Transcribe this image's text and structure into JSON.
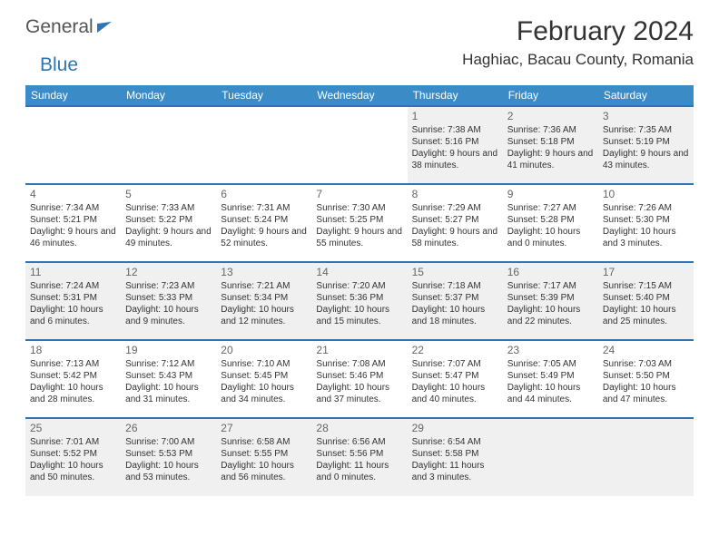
{
  "brand": {
    "word1": "General",
    "word2": "Blue"
  },
  "title": {
    "month_year": "February 2024",
    "location": "Haghiac, Bacau County, Romania"
  },
  "header_bg": "#3b8bc7",
  "row_border": "#2e75b6",
  "alt_row_bg": "#f0f0f0",
  "days_of_week": [
    "Sunday",
    "Monday",
    "Tuesday",
    "Wednesday",
    "Thursday",
    "Friday",
    "Saturday"
  ],
  "weeks": [
    [
      null,
      null,
      null,
      null,
      {
        "n": "1",
        "sr": "Sunrise: 7:38 AM",
        "ss": "Sunset: 5:16 PM",
        "dl": "Daylight: 9 hours and 38 minutes."
      },
      {
        "n": "2",
        "sr": "Sunrise: 7:36 AM",
        "ss": "Sunset: 5:18 PM",
        "dl": "Daylight: 9 hours and 41 minutes."
      },
      {
        "n": "3",
        "sr": "Sunrise: 7:35 AM",
        "ss": "Sunset: 5:19 PM",
        "dl": "Daylight: 9 hours and 43 minutes."
      }
    ],
    [
      {
        "n": "4",
        "sr": "Sunrise: 7:34 AM",
        "ss": "Sunset: 5:21 PM",
        "dl": "Daylight: 9 hours and 46 minutes."
      },
      {
        "n": "5",
        "sr": "Sunrise: 7:33 AM",
        "ss": "Sunset: 5:22 PM",
        "dl": "Daylight: 9 hours and 49 minutes."
      },
      {
        "n": "6",
        "sr": "Sunrise: 7:31 AM",
        "ss": "Sunset: 5:24 PM",
        "dl": "Daylight: 9 hours and 52 minutes."
      },
      {
        "n": "7",
        "sr": "Sunrise: 7:30 AM",
        "ss": "Sunset: 5:25 PM",
        "dl": "Daylight: 9 hours and 55 minutes."
      },
      {
        "n": "8",
        "sr": "Sunrise: 7:29 AM",
        "ss": "Sunset: 5:27 PM",
        "dl": "Daylight: 9 hours and 58 minutes."
      },
      {
        "n": "9",
        "sr": "Sunrise: 7:27 AM",
        "ss": "Sunset: 5:28 PM",
        "dl": "Daylight: 10 hours and 0 minutes."
      },
      {
        "n": "10",
        "sr": "Sunrise: 7:26 AM",
        "ss": "Sunset: 5:30 PM",
        "dl": "Daylight: 10 hours and 3 minutes."
      }
    ],
    [
      {
        "n": "11",
        "sr": "Sunrise: 7:24 AM",
        "ss": "Sunset: 5:31 PM",
        "dl": "Daylight: 10 hours and 6 minutes."
      },
      {
        "n": "12",
        "sr": "Sunrise: 7:23 AM",
        "ss": "Sunset: 5:33 PM",
        "dl": "Daylight: 10 hours and 9 minutes."
      },
      {
        "n": "13",
        "sr": "Sunrise: 7:21 AM",
        "ss": "Sunset: 5:34 PM",
        "dl": "Daylight: 10 hours and 12 minutes."
      },
      {
        "n": "14",
        "sr": "Sunrise: 7:20 AM",
        "ss": "Sunset: 5:36 PM",
        "dl": "Daylight: 10 hours and 15 minutes."
      },
      {
        "n": "15",
        "sr": "Sunrise: 7:18 AM",
        "ss": "Sunset: 5:37 PM",
        "dl": "Daylight: 10 hours and 18 minutes."
      },
      {
        "n": "16",
        "sr": "Sunrise: 7:17 AM",
        "ss": "Sunset: 5:39 PM",
        "dl": "Daylight: 10 hours and 22 minutes."
      },
      {
        "n": "17",
        "sr": "Sunrise: 7:15 AM",
        "ss": "Sunset: 5:40 PM",
        "dl": "Daylight: 10 hours and 25 minutes."
      }
    ],
    [
      {
        "n": "18",
        "sr": "Sunrise: 7:13 AM",
        "ss": "Sunset: 5:42 PM",
        "dl": "Daylight: 10 hours and 28 minutes."
      },
      {
        "n": "19",
        "sr": "Sunrise: 7:12 AM",
        "ss": "Sunset: 5:43 PM",
        "dl": "Daylight: 10 hours and 31 minutes."
      },
      {
        "n": "20",
        "sr": "Sunrise: 7:10 AM",
        "ss": "Sunset: 5:45 PM",
        "dl": "Daylight: 10 hours and 34 minutes."
      },
      {
        "n": "21",
        "sr": "Sunrise: 7:08 AM",
        "ss": "Sunset: 5:46 PM",
        "dl": "Daylight: 10 hours and 37 minutes."
      },
      {
        "n": "22",
        "sr": "Sunrise: 7:07 AM",
        "ss": "Sunset: 5:47 PM",
        "dl": "Daylight: 10 hours and 40 minutes."
      },
      {
        "n": "23",
        "sr": "Sunrise: 7:05 AM",
        "ss": "Sunset: 5:49 PM",
        "dl": "Daylight: 10 hours and 44 minutes."
      },
      {
        "n": "24",
        "sr": "Sunrise: 7:03 AM",
        "ss": "Sunset: 5:50 PM",
        "dl": "Daylight: 10 hours and 47 minutes."
      }
    ],
    [
      {
        "n": "25",
        "sr": "Sunrise: 7:01 AM",
        "ss": "Sunset: 5:52 PM",
        "dl": "Daylight: 10 hours and 50 minutes."
      },
      {
        "n": "26",
        "sr": "Sunrise: 7:00 AM",
        "ss": "Sunset: 5:53 PM",
        "dl": "Daylight: 10 hours and 53 minutes."
      },
      {
        "n": "27",
        "sr": "Sunrise: 6:58 AM",
        "ss": "Sunset: 5:55 PM",
        "dl": "Daylight: 10 hours and 56 minutes."
      },
      {
        "n": "28",
        "sr": "Sunrise: 6:56 AM",
        "ss": "Sunset: 5:56 PM",
        "dl": "Daylight: 11 hours and 0 minutes."
      },
      {
        "n": "29",
        "sr": "Sunrise: 6:54 AM",
        "ss": "Sunset: 5:58 PM",
        "dl": "Daylight: 11 hours and 3 minutes."
      },
      null,
      null
    ]
  ]
}
